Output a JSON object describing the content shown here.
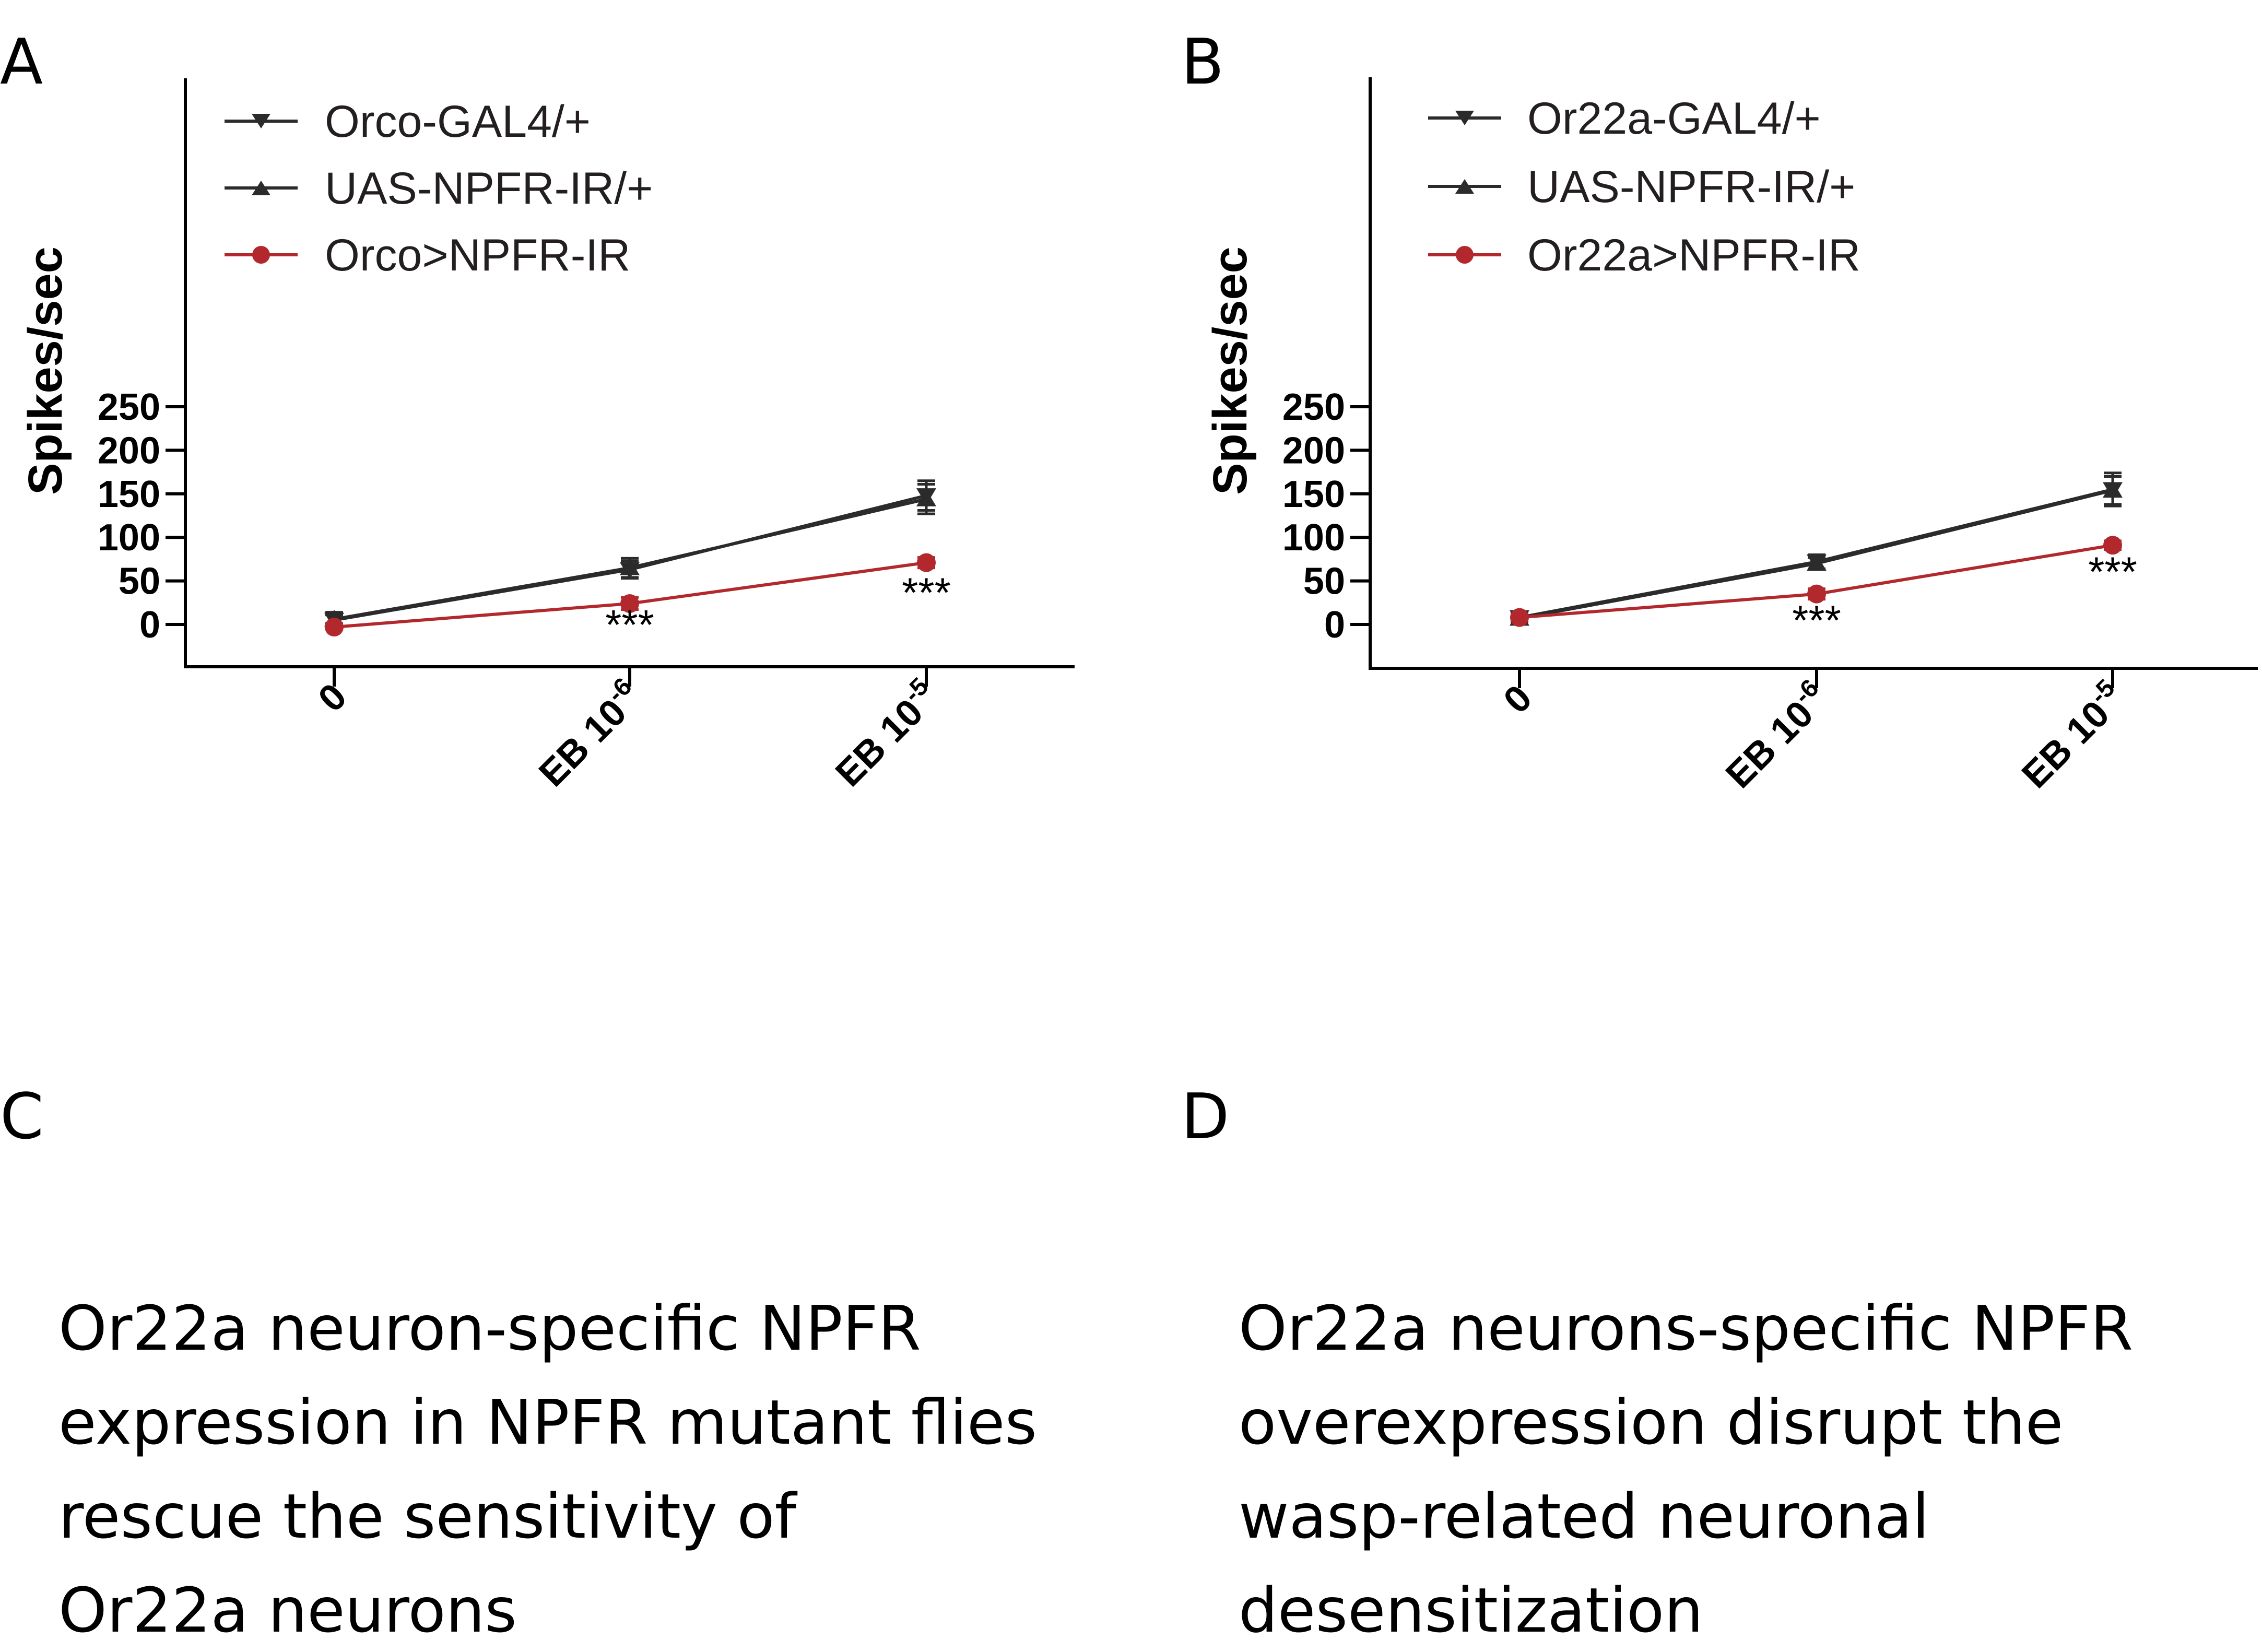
{
  "colors": {
    "black_series": "#2b2b2b",
    "red_series": "#b2282d"
  },
  "chart_data": [
    {
      "panel_letter": "A",
      "type": "line",
      "ylabel": "Spikes/sec",
      "ylim": [
        -20,
        250
      ],
      "yticks": [
        "0",
        "50",
        "100",
        "150",
        "200",
        "250"
      ],
      "categories": [
        {
          "base": "0",
          "exp": ""
        },
        {
          "base": "EB 10",
          "exp": "-6"
        },
        {
          "base": "EB 10",
          "exp": "-5"
        }
      ],
      "legend_position": "top-left",
      "series": [
        {
          "name": "Orco-GAL4/+",
          "marker": "triangle-down",
          "color": "#2b2b2b",
          "values": [
            5,
            63,
            148
          ],
          "errors": [
            9,
            10,
            17
          ]
        },
        {
          "name": "UAS-NPFR-IR/+",
          "marker": "triangle-up",
          "color": "#2b2b2b",
          "values": [
            6,
            65,
            144
          ],
          "errors": [
            5,
            11,
            17
          ]
        },
        {
          "name": "Orco>NPFR-IR",
          "marker": "circle",
          "color": "#b2282d",
          "values": [
            -3,
            24,
            71
          ],
          "errors": [
            2,
            7,
            6
          ]
        }
      ],
      "annotations": [
        {
          "text": "***",
          "category_index": 1,
          "y": 0
        },
        {
          "text": "***",
          "category_index": 2,
          "y": 37
        }
      ]
    },
    {
      "panel_letter": "B",
      "type": "line",
      "ylabel": "Spikes/sec",
      "ylim": [
        -20,
        250
      ],
      "yticks": [
        "0",
        "50",
        "100",
        "150",
        "200",
        "250"
      ],
      "categories": [
        {
          "base": "0",
          "exp": ""
        },
        {
          "base": "EB 10",
          "exp": "-6"
        },
        {
          "base": "EB 10",
          "exp": "-5"
        }
      ],
      "legend_position": "top-left",
      "series": [
        {
          "name": "Or22a-GAL4/+",
          "marker": "triangle-down",
          "color": "#2b2b2b",
          "values": [
            8,
            72,
            155
          ],
          "errors": [
            5,
            8,
            19
          ]
        },
        {
          "name": "UAS-NPFR-IR/+",
          "marker": "triangle-up",
          "color": "#2b2b2b",
          "values": [
            7,
            70,
            154
          ],
          "errors": [
            4,
            7,
            16
          ]
        },
        {
          "name": "Or22a>NPFR-IR",
          "marker": "circle",
          "color": "#b2282d",
          "values": [
            8,
            35,
            91
          ],
          "errors": [
            3,
            6,
            5
          ]
        }
      ],
      "annotations": [
        {
          "text": "***",
          "category_index": 1,
          "y": 5
        },
        {
          "text": "***",
          "category_index": 2,
          "y": 61
        }
      ]
    }
  ],
  "panel_c": {
    "letter": "C",
    "lines": [
      "Or22a neuron-specific NPFR",
      "expression in NPFR mutant flies",
      "rescue the sensitivity of",
      "Or22a neurons"
    ]
  },
  "panel_d": {
    "letter": "D",
    "lines": [
      "Or22a neurons-specific NPFR",
      "overexpression disrupt the",
      "wasp-related neuronal",
      "desensitization"
    ]
  }
}
